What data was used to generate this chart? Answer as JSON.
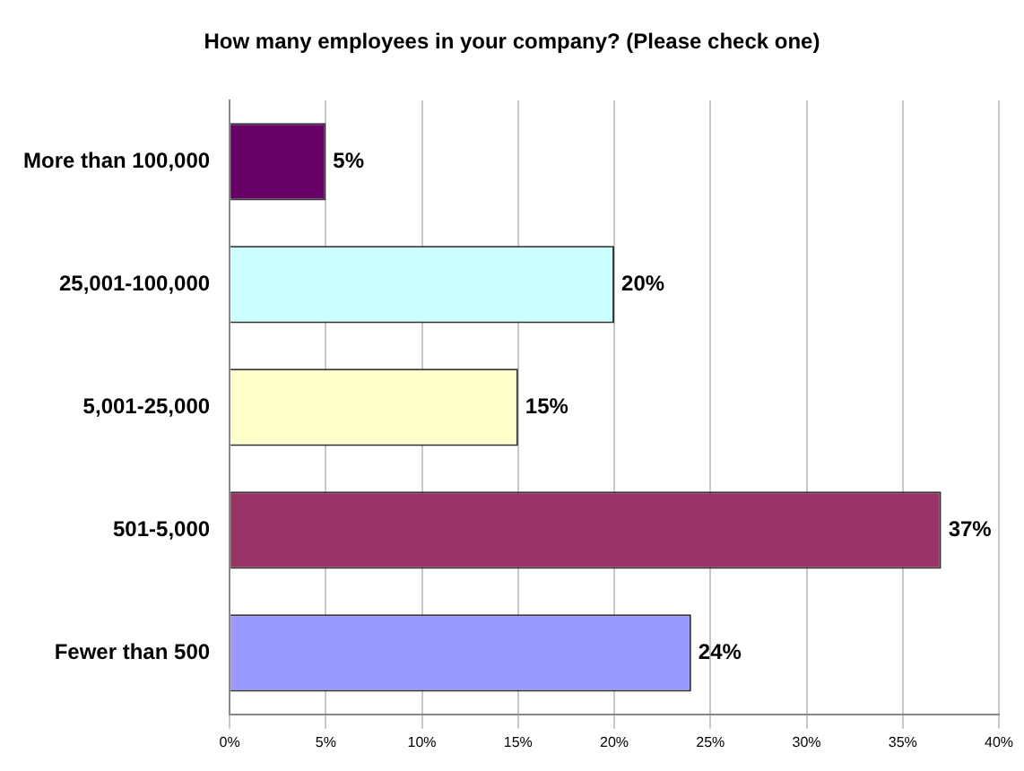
{
  "chart_data": {
    "type": "bar",
    "orientation": "horizontal",
    "title": "How many employees in your company? (Please check one)",
    "categories": [
      "More than 100,000",
      "25,001-100,000",
      "5,001-25,000",
      "501-5,000",
      "Fewer than 500"
    ],
    "values": [
      5,
      20,
      15,
      37,
      24
    ],
    "colors": [
      "#660066",
      "#ccffff",
      "#ffffcc",
      "#993366",
      "#9999ff"
    ],
    "xlim": [
      0,
      40
    ],
    "xticks": [
      {
        "value": 0,
        "label": "0%"
      },
      {
        "value": 5,
        "label": "5%"
      },
      {
        "value": 10,
        "label": "10%"
      },
      {
        "value": 15,
        "label": "15%"
      },
      {
        "value": 20,
        "label": "20%"
      },
      {
        "value": 25,
        "label": "25%"
      },
      {
        "value": 30,
        "label": "30%"
      },
      {
        "value": 35,
        "label": "35%"
      },
      {
        "value": 40,
        "label": "40%"
      }
    ],
    "value_labels": [
      "5%",
      "20%",
      "15%",
      "37%",
      "24%"
    ],
    "grid": "x",
    "legend": false
  }
}
